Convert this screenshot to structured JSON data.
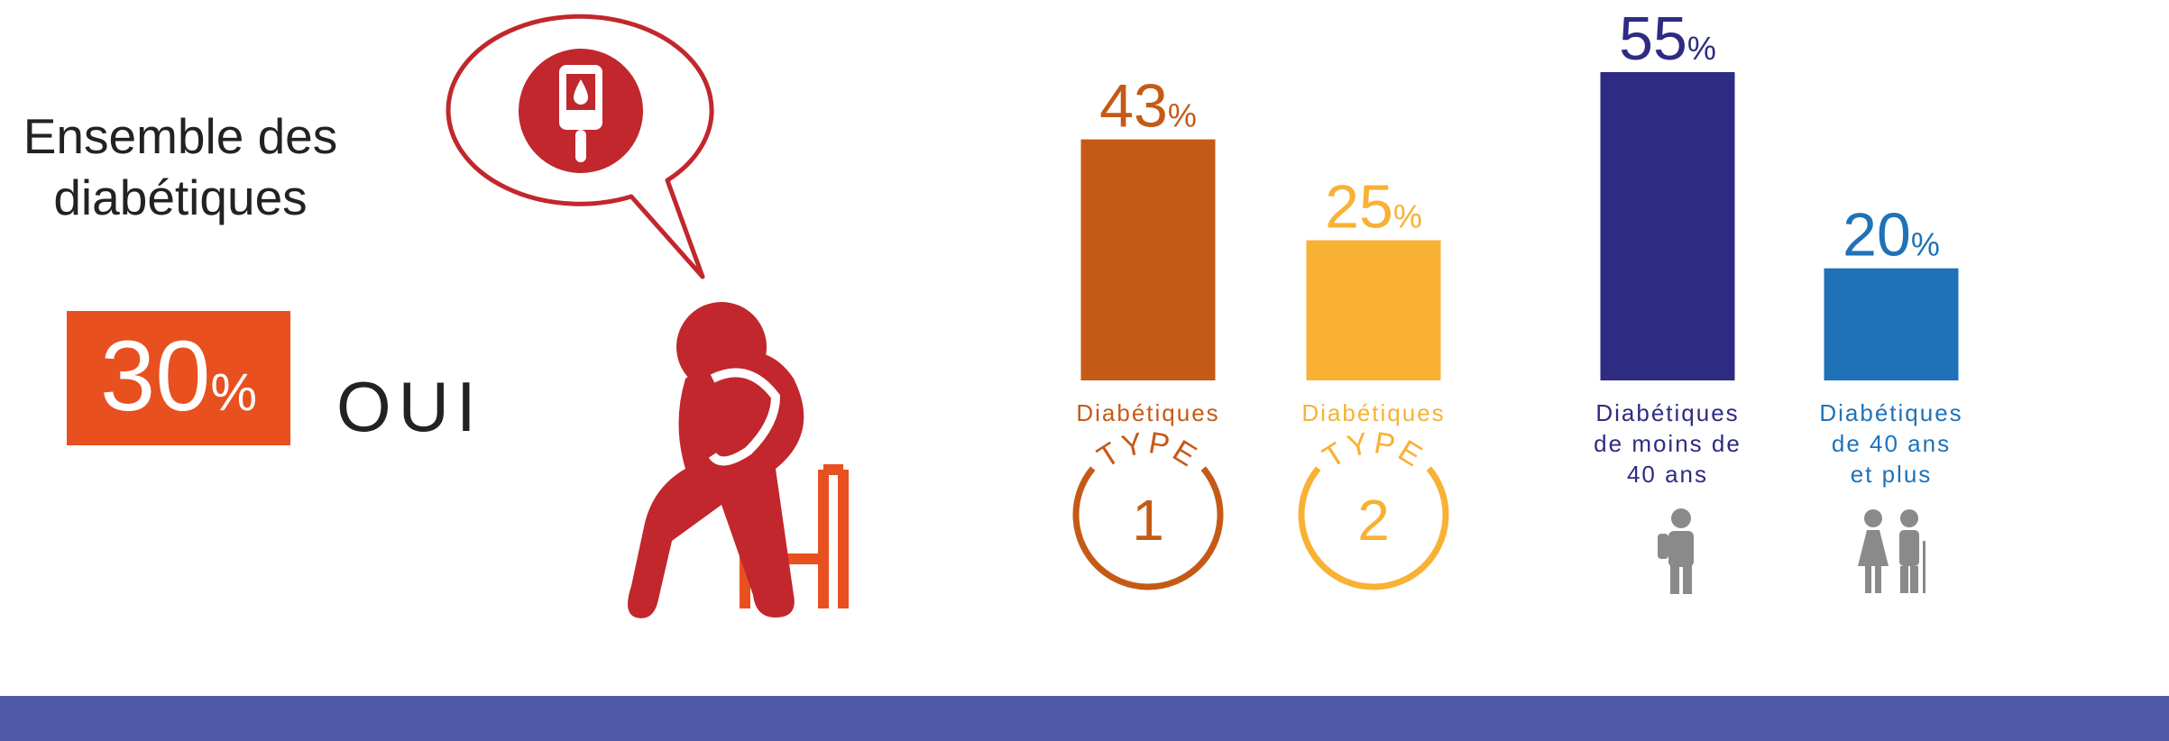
{
  "summary": {
    "title_lines": [
      "Ensemble des",
      "diabétiques"
    ],
    "value": 30,
    "unit": "%",
    "answer": "OUI"
  },
  "chart_data": {
    "type": "bar",
    "categories": [
      [
        "Diabétiques"
      ],
      [
        "Diabétiques"
      ],
      [
        "Diabétiques",
        "de moins de",
        "40 ans"
      ],
      [
        "Diabétiques",
        "de 40 ans",
        "et plus"
      ]
    ],
    "values": [
      43,
      25,
      55,
      20
    ],
    "unit": "%",
    "colors": [
      "#c55a17",
      "#f8b133",
      "#2e2b83",
      "#1f72b8"
    ],
    "badges": [
      {
        "label": "TYPE",
        "number": 1
      },
      {
        "label": "TYPE",
        "number": 2
      }
    ]
  }
}
